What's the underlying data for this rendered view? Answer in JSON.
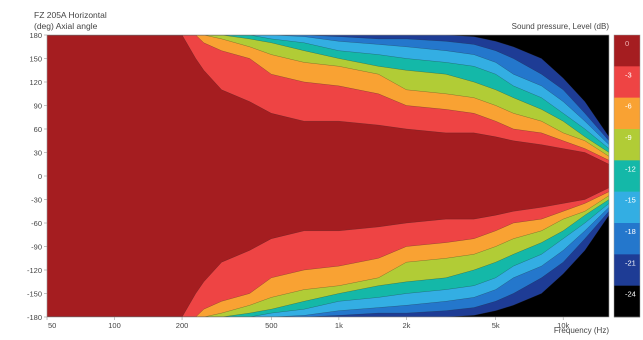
{
  "chart_data": {
    "type": "heatmap",
    "title": "FZ 205A Horizontal",
    "xlabel": "Frequency (Hz)",
    "ylabel": "(deg) Axial angle",
    "colorbar_label": "Sound pressure, Level (dB)",
    "x_scale": "log",
    "xlim": [
      50,
      16000
    ],
    "ylim": [
      -180,
      180
    ],
    "x_ticks": [
      {
        "value": 50,
        "label": "50"
      },
      {
        "value": 100,
        "label": "100"
      },
      {
        "value": 200,
        "label": "200"
      },
      {
        "value": 500,
        "label": "500"
      },
      {
        "value": 1000,
        "label": "1k"
      },
      {
        "value": 2000,
        "label": "2k"
      },
      {
        "value": 5000,
        "label": "5k"
      },
      {
        "value": 10000,
        "label": "10k"
      }
    ],
    "y_ticks": [
      {
        "value": 180,
        "label": "180"
      },
      {
        "value": 150,
        "label": "150"
      },
      {
        "value": 120,
        "label": "120"
      },
      {
        "value": 90,
        "label": "90"
      },
      {
        "value": 60,
        "label": "60"
      },
      {
        "value": 30,
        "label": "30"
      },
      {
        "value": 0,
        "label": "0"
      },
      {
        "value": -30,
        "label": "-30"
      },
      {
        "value": -60,
        "label": "-60"
      },
      {
        "value": -90,
        "label": "-90"
      },
      {
        "value": -120,
        "label": "-120"
      },
      {
        "value": -150,
        "label": "-150"
      },
      {
        "value": -180,
        "label": "-180"
      }
    ],
    "levels": [
      {
        "label": "0",
        "color": "#a51d20"
      },
      {
        "label": "-3",
        "color": "#ee4444"
      },
      {
        "label": "-6",
        "color": "#f9a233"
      },
      {
        "label": "-9",
        "color": "#b1cc36"
      },
      {
        "label": "-12",
        "color": "#14b8a8"
      },
      {
        "label": "-15",
        "color": "#33aee3"
      },
      {
        "label": "-18",
        "color": "#2477cc"
      },
      {
        "label": "-21",
        "color": "#1e3c95"
      },
      {
        "label": "-24",
        "color": "#000000"
      }
    ],
    "contour_boundaries_deg": {
      "frequency_hz": [
        50,
        200,
        230,
        250,
        300,
        400,
        500,
        700,
        1000,
        1500,
        2000,
        3000,
        4000,
        5000,
        6000,
        8000,
        10000,
        12500,
        16000
      ],
      "minus_3_dB": [
        180,
        180,
        150,
        135,
        110,
        95,
        80,
        70,
        70,
        65,
        60,
        55,
        55,
        50,
        45,
        40,
        35,
        30,
        15
      ],
      "minus_6_dB": [
        180,
        180,
        180,
        170,
        160,
        150,
        130,
        120,
        115,
        105,
        90,
        85,
        80,
        70,
        60,
        55,
        45,
        35,
        20
      ],
      "minus_9_dB": [
        180,
        180,
        180,
        180,
        175,
        165,
        155,
        145,
        140,
        130,
        110,
        105,
        100,
        90,
        80,
        70,
        55,
        45,
        25
      ],
      "minus_12_dB": [
        180,
        180,
        180,
        180,
        180,
        175,
        170,
        160,
        150,
        140,
        135,
        130,
        120,
        110,
        100,
        85,
        70,
        50,
        30
      ],
      "minus_15_dB": [
        180,
        180,
        180,
        180,
        180,
        180,
        175,
        170,
        160,
        155,
        150,
        145,
        140,
        130,
        115,
        100,
        80,
        60,
        35
      ],
      "minus_18_dB": [
        180,
        180,
        180,
        180,
        180,
        180,
        180,
        178,
        172,
        168,
        165,
        160,
        155,
        145,
        130,
        115,
        95,
        70,
        40
      ],
      "minus_21_dB": [
        180,
        180,
        180,
        180,
        180,
        180,
        180,
        180,
        178,
        175,
        175,
        172,
        168,
        160,
        150,
        130,
        110,
        80,
        45
      ],
      "minus_24_dB": [
        180,
        180,
        180,
        180,
        180,
        180,
        180,
        180,
        180,
        180,
        180,
        180,
        178,
        172,
        165,
        150,
        125,
        95,
        50
      ]
    }
  }
}
